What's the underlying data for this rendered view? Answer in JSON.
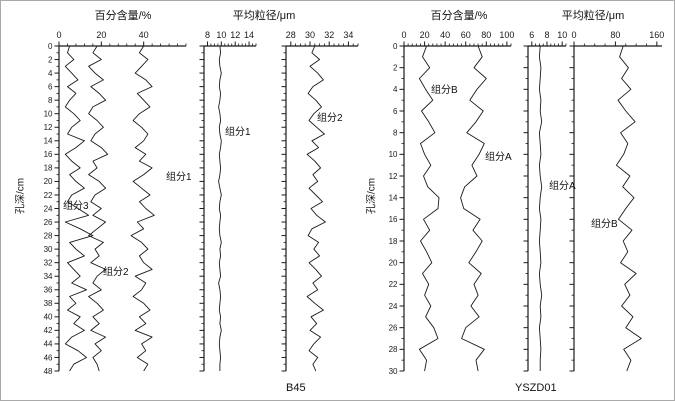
{
  "figure": {
    "background": "#ffffff",
    "line_color": "#1a1a1a"
  },
  "chart_data": [
    {
      "name": "B45",
      "type": "line",
      "percent_title": "百分含量/%",
      "grain_size_title": "平均粒径/μm",
      "depth_axis": {
        "label": "孔深/cm",
        "min": 0,
        "max": 48,
        "major_tick": 2,
        "minor_tick": 1
      },
      "depth_step": 1,
      "panels": [
        {
          "measure": "百分含量/%",
          "x_min": 0,
          "x_max": 60,
          "x_ticks": [
            0,
            20,
            40
          ],
          "x_minor_step": 4,
          "series": [
            {
              "name": "组分3",
              "values": [
                5,
                4,
                7,
                3,
                6,
                9,
                4,
                8,
                5,
                3,
                7,
                10,
                6,
                4,
                12,
                8,
                3,
                6,
                10,
                5,
                8,
                12,
                6,
                4,
                9,
                14,
                3,
                10,
                16,
                5,
                8,
                12,
                4,
                7,
                10,
                6,
                13,
                5,
                8,
                4,
                10,
                7,
                12,
                6,
                3,
                9,
                13,
                7,
                5
              ]
            },
            {
              "name": "组分2",
              "values": [
                18,
                16,
                20,
                14,
                17,
                21,
                15,
                19,
                22,
                16,
                14,
                18,
                21,
                17,
                15,
                20,
                23,
                16,
                18,
                14,
                19,
                22,
                17,
                15,
                20,
                16,
                22,
                18,
                14,
                21,
                17,
                19,
                15,
                22,
                18,
                16,
                20,
                14,
                18,
                21,
                16,
                19,
                15,
                22,
                17,
                20,
                16,
                18,
                19
              ]
            },
            {
              "name": "组分1",
              "values": [
                40,
                38,
                42,
                39,
                36,
                41,
                44,
                37,
                40,
                43,
                38,
                35,
                39,
                42,
                40,
                36,
                41,
                38,
                44,
                40,
                35,
                39,
                43,
                38,
                41,
                45,
                37,
                40,
                34,
                39,
                42,
                38,
                40,
                44,
                36,
                41,
                39,
                35,
                40,
                43,
                38,
                41,
                36,
                44,
                39,
                41,
                37,
                42,
                40
              ]
            }
          ],
          "annotations": [
            {
              "text": "组分3"
            },
            {
              "text": "组分1"
            },
            {
              "text": "组分2"
            }
          ]
        },
        {
          "measure": "平均粒径/μm",
          "x_min": 7.5,
          "x_max": 15,
          "x_ticks": [
            8,
            10,
            12,
            14
          ],
          "x_minor_step": 0.5,
          "series": [
            {
              "name": "组分1",
              "values": [
                9.8,
                9.9,
                9.7,
                9.8,
                10.0,
                9.8,
                9.7,
                9.9,
                9.8,
                9.6,
                9.8,
                9.9,
                9.7,
                9.8,
                10.0,
                9.9,
                9.7,
                9.8,
                9.9,
                9.8,
                9.6,
                9.8,
                10.0,
                9.8,
                9.7,
                9.9,
                9.8,
                9.7,
                9.8,
                10.0,
                9.8,
                9.9,
                9.7,
                9.8,
                9.9,
                9.6,
                9.8,
                9.9,
                9.8,
                9.7,
                9.9,
                9.8,
                10.0,
                9.8,
                9.7,
                9.8,
                9.9,
                9.8,
                9.8
              ]
            }
          ],
          "annotations": [
            {
              "text": "组分1"
            }
          ]
        },
        {
          "measure": "平均粒径/μm",
          "x_min": 27.5,
          "x_max": 35,
          "x_ticks": [
            28,
            30,
            32,
            34
          ],
          "x_minor_step": 0.5,
          "series": [
            {
              "name": "组分2",
              "values": [
                30.5,
                30.2,
                31.0,
                30.0,
                30.8,
                31.4,
                30.3,
                29.8,
                30.6,
                31.2,
                30.4,
                29.9,
                30.7,
                31.5,
                30.2,
                30.9,
                29.7,
                30.5,
                31.1,
                30.3,
                30.8,
                29.9,
                30.6,
                31.3,
                30.1,
                30.7,
                31.6,
                30.2,
                29.8,
                30.9,
                30.4,
                31.0,
                29.9,
                30.6,
                31.2,
                30.3,
                30.8,
                29.7,
                30.5,
                31.4,
                30.1,
                30.7,
                30.0,
                31.1,
                30.4,
                29.9,
                30.8,
                30.3,
                30.6
              ]
            }
          ],
          "annotations": [
            {
              "text": "组分2"
            }
          ]
        }
      ]
    },
    {
      "name": "YSZD01",
      "type": "line",
      "percent_title": "百分含量/%",
      "grain_size_title": "平均粒径/μm",
      "depth_axis": {
        "label": "孔深/cm",
        "min": 0,
        "max": 30,
        "major_tick": 2,
        "minor_tick": 1
      },
      "depth_step": 1,
      "panels": [
        {
          "measure": "百分含量/%",
          "x_min": 0,
          "x_max": 104,
          "x_ticks": [
            0,
            20,
            40,
            60,
            80,
            100
          ],
          "x_minor_step": 4,
          "series": [
            {
              "name": "组分B",
              "values": [
                22,
                18,
                25,
                15,
                21,
                28,
                17,
                24,
                30,
                16,
                20,
                26,
                19,
                23,
                34,
                33,
                19,
                25,
                16,
                22,
                27,
                18,
                24,
                20,
                26,
                21,
                29,
                33,
                15,
                22,
                20
              ]
            },
            {
              "name": "组分A",
              "values": [
                72,
                76,
                68,
                80,
                71,
                64,
                77,
                70,
                61,
                78,
                73,
                66,
                71,
                59,
                55,
                58,
                74,
                67,
                76,
                70,
                63,
                75,
                68,
                72,
                65,
                73,
                60,
                56,
                78,
                70,
                72
              ]
            }
          ],
          "annotations": [
            {
              "text": "组分B"
            },
            {
              "text": "组分A"
            }
          ]
        },
        {
          "measure": "平均粒径/μm",
          "x_min": 5.5,
          "x_max": 10.5,
          "x_ticks": [
            6,
            8,
            10
          ],
          "x_minor_step": 0.5,
          "series": [
            {
              "name": "组分A",
              "values": [
                7.1,
                7.0,
                7.2,
                7.1,
                7.0,
                7.2,
                7.1,
                7.3,
                7.0,
                7.1,
                7.2,
                7.0,
                7.1,
                7.3,
                7.1,
                7.0,
                7.2,
                7.1,
                7.0,
                7.1,
                7.2,
                7.0,
                7.1,
                7.3,
                7.1,
                7.2,
                7.0,
                7.1,
                7.2,
                7.1,
                7.1
              ]
            }
          ],
          "annotations": [
            {
              "text": "组分A"
            }
          ]
        },
        {
          "measure": "平均粒径/μm",
          "x_min": 0,
          "x_max": 170,
          "x_ticks": [
            0,
            80,
            160
          ],
          "x_minor_step": 20,
          "series": [
            {
              "name": "组分B",
              "values": [
                95,
                88,
                105,
                92,
                110,
                85,
                100,
                118,
                90,
                104,
                96,
                82,
                108,
                94,
                116,
                100,
                86,
                112,
                95,
                104,
                90,
                120,
                98,
                108,
                92,
                114,
                100,
                130,
                96,
                110,
                102
              ]
            }
          ],
          "annotations": [
            {
              "text": "组分B"
            }
          ]
        }
      ]
    }
  ]
}
